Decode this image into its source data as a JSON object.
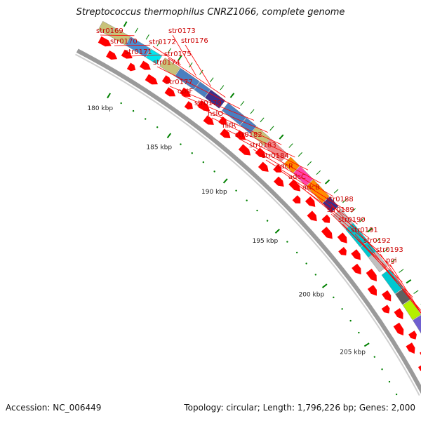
{
  "title": "Streptococcus thermophilus CNRZ1066, complete genome",
  "footer": {
    "accession": "Accession: NC_006449",
    "summary": "Topology: circular; Length: 1,796,226 bp; Genes: 2,000"
  },
  "colors": {
    "gene_arrow": "#ff0000",
    "label_line": "#ff0000",
    "label_text": "#cc0000",
    "tick_major": "#008000",
    "backbone": "#9a9a9a"
  },
  "scale": {
    "major_ticks": [
      {
        "label": "180 kbp"
      },
      {
        "label": "185 kbp"
      },
      {
        "label": "190 kbp"
      },
      {
        "label": "195 kbp"
      },
      {
        "label": "200 kbp"
      },
      {
        "label": "205 kbp"
      }
    ]
  },
  "gene_labels": [
    "str0169",
    "str0170",
    "str0171",
    "str0172",
    "str0173",
    "str0176",
    "str0175",
    "str0174",
    "str0177",
    "optF",
    "str0179",
    "hslO",
    "nifR",
    "str0182",
    "str0183",
    "str0184",
    "adcR",
    "adcC",
    "adcB",
    "str0188",
    "str0189",
    "str0190",
    "str0191",
    "str0192",
    "str0193",
    "pgi"
  ],
  "cog_blocks_colors": [
    "#c8c27a",
    "#c8c27a",
    "#4a8fd0",
    "#00e5ee",
    "#c8c27a",
    "#4a7fc0",
    "#4a7fc0",
    "#3b2f8a",
    "#4a7fc0",
    "#4a7fc0",
    "#c8c27a",
    "#f08a8a",
    "#ff8c00",
    "#ff44aa",
    "#ff8c00",
    "#3b2f8a",
    "#c0c0c0",
    "#00c8d0",
    "#00c8d0",
    "#c0c0c0",
    "#00c8d0",
    "#606060",
    "#b4f000",
    "#6f5fd0",
    "#5a8a2a",
    "#f08a8a"
  ]
}
